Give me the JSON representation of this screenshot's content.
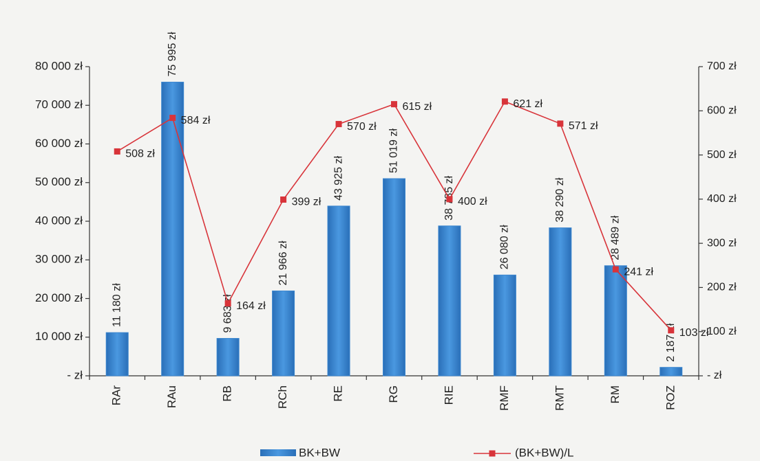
{
  "chart_data": {
    "type": "bar-line",
    "categories": [
      "RAr",
      "RAu",
      "RB",
      "RCh",
      "RE",
      "RG",
      "RIE",
      "RMF",
      "RMT",
      "RM",
      "ROZ"
    ],
    "series": [
      {
        "name": "BK+BW",
        "type": "bar",
        "color": "#3b86cf",
        "values": [
          11180,
          75995,
          9683,
          21966,
          43925,
          51019,
          38785,
          26080,
          38290,
          28489,
          2187
        ],
        "value_labels": [
          "11 180 zł",
          "75 995 zł",
          "9 683 zł",
          "21 966 zł",
          "43 925 zł",
          "51 019 zł",
          "38 785 zł",
          "26 080 zł",
          "38 290 zł",
          "28 489 zł",
          "2 187 zł"
        ]
      },
      {
        "name": "(BK+BW)/L",
        "type": "line",
        "axis": "y2",
        "color": "#d8343a",
        "values": [
          508,
          584,
          164,
          399,
          570,
          615,
          400,
          621,
          571,
          241,
          103
        ],
        "value_labels": [
          "508 zł",
          "584 zł",
          "164 zł",
          "399 zł",
          "570 zł",
          "615 zł",
          "400 zł",
          "621 zł",
          "571 zł",
          "241 zł",
          "103 zł"
        ]
      }
    ],
    "ylim": [
      0,
      80000
    ],
    "yticks": [
      {
        "value": 0,
        "label": "-     zł"
      },
      {
        "value": 10000,
        "label": "10 000 zł"
      },
      {
        "value": 20000,
        "label": "20 000 zł"
      },
      {
        "value": 30000,
        "label": "30 000 zł"
      },
      {
        "value": 40000,
        "label": "40 000 zł"
      },
      {
        "value": 50000,
        "label": "50 000 zł"
      },
      {
        "value": 60000,
        "label": "60 000 zł"
      },
      {
        "value": 70000,
        "label": "70 000 zł"
      },
      {
        "value": 80000,
        "label": "80 000 zł"
      }
    ],
    "y2lim": [
      0,
      700
    ],
    "y2ticks": [
      {
        "value": 0,
        "label": "-     zł"
      },
      {
        "value": 100,
        "label": "100 zł"
      },
      {
        "value": 200,
        "label": "200 zł"
      },
      {
        "value": 300,
        "label": "300 zł"
      },
      {
        "value": 400,
        "label": "400 zł"
      },
      {
        "value": 500,
        "label": "500 zł"
      },
      {
        "value": 600,
        "label": "600 zł"
      },
      {
        "value": 700,
        "label": "700 zł"
      }
    ],
    "legend": "bottom"
  }
}
